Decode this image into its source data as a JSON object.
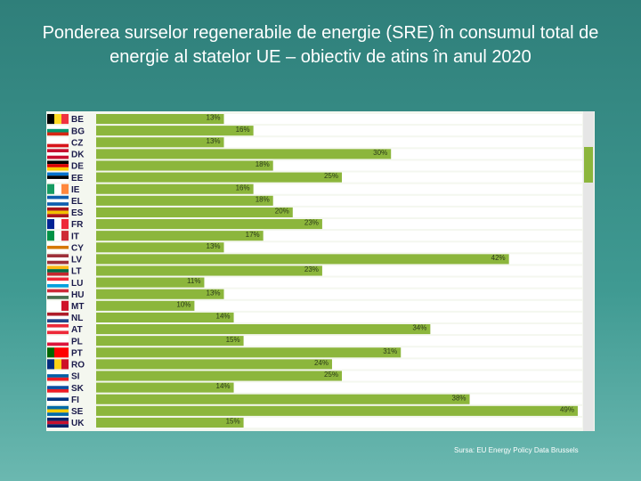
{
  "chart_data": {
    "type": "hbar",
    "title": "Ponderea surselor regenerabile de energie (SRE)  în consumul total de energie al statelor UE – obiectiv de atins în anul 2020",
    "categories": [
      "BE",
      "BG",
      "CZ",
      "DK",
      "DE",
      "EE",
      "IE",
      "EL",
      "ES",
      "FR",
      "IT",
      "CY",
      "LV",
      "LT",
      "LU",
      "HU",
      "MT",
      "NL",
      "AT",
      "PL",
      "PT",
      "RO",
      "SI",
      "SK",
      "FI",
      "SE",
      "UK"
    ],
    "values": [
      13,
      16,
      13,
      30,
      18,
      25,
      16,
      18,
      20,
      23,
      17,
      13,
      42,
      23,
      11,
      13,
      10,
      14,
      34,
      15,
      31,
      24,
      25,
      14,
      38,
      49,
      15
    ],
    "value_labels": [
      "13%",
      "16%",
      "13%",
      "30%",
      "18%",
      "25%",
      "16%",
      "18%",
      "20%",
      "23%",
      "17%",
      "13%",
      "42%",
      "23%",
      "11%",
      "13%",
      "10%",
      "14%",
      "34%",
      "15%",
      "31%",
      "24%",
      "25%",
      "14%",
      "38%",
      "49%",
      "15%"
    ],
    "color": "#8cb63c",
    "xlim": [
      0,
      50
    ],
    "source": "Sursa: EU Energy Policy Data Brussels"
  }
}
